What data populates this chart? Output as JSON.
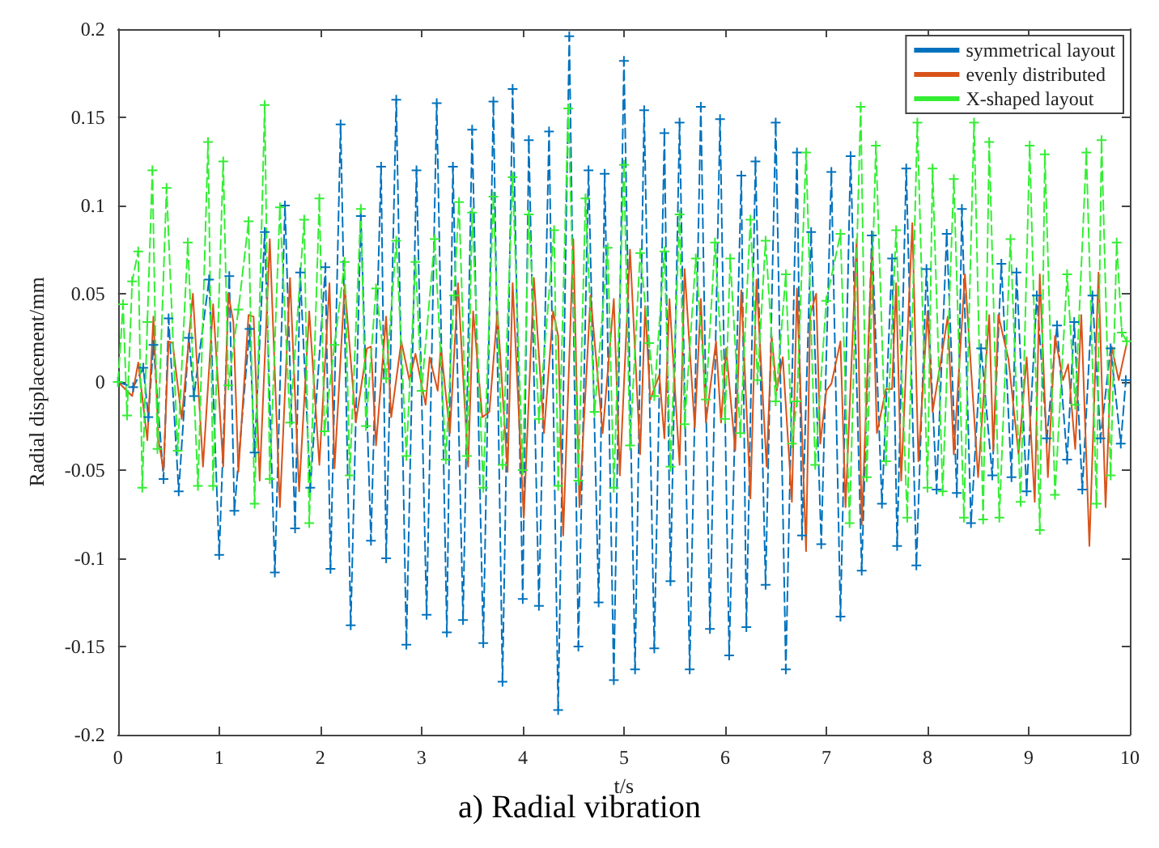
{
  "chart_data": {
    "type": "line",
    "title": "a) Radial vibration",
    "xlabel": "t/s",
    "ylabel": "Radial displacement/mm",
    "xlim": [
      0,
      10
    ],
    "xticks": [
      0,
      1,
      2,
      3,
      4,
      5,
      6,
      7,
      8,
      9,
      10
    ],
    "ylim": [
      -0.2,
      0.2
    ],
    "yticks": [
      -0.2,
      -0.15,
      -0.1,
      -0.05,
      0,
      0.05,
      0.1,
      0.15,
      0.2
    ],
    "grid": false,
    "legend": "top right",
    "series": [
      {
        "name": "symmetrical layout",
        "color": "#0072bd",
        "marker": "cross",
        "line_style": "dashed",
        "x": [
          0,
          0.15,
          0.25,
          0.3,
          0.35,
          0.45,
          0.5,
          0.6,
          0.7,
          0.75,
          0.9,
          1.0,
          1.1,
          1.15,
          1.3,
          1.35,
          1.45,
          1.55,
          1.65,
          1.75,
          1.8,
          1.9,
          2.05,
          2.1,
          2.2,
          2.3,
          2.4,
          2.5,
          2.6,
          2.65,
          2.75,
          2.85,
          2.95,
          3.05,
          3.15,
          3.25,
          3.31,
          3.41,
          3.5,
          3.61,
          3.71,
          3.8,
          3.9,
          4.0,
          4.06,
          4.16,
          4.26,
          4.35,
          4.46,
          4.55,
          4.65,
          4.75,
          4.81,
          4.9,
          5.0,
          5.11,
          5.2,
          5.3,
          5.4,
          5.46,
          5.55,
          5.65,
          5.76,
          5.85,
          5.95,
          6.04,
          6.16,
          6.21,
          6.3,
          6.4,
          6.5,
          6.6,
          6.71,
          6.76,
          6.85,
          6.95,
          7.05,
          7.14,
          7.24,
          7.35,
          7.45,
          7.55,
          7.65,
          7.7,
          7.79,
          7.89,
          7.99,
          8.09,
          8.19,
          8.29,
          8.34,
          8.43,
          8.53,
          8.64,
          8.73,
          8.83,
          8.88,
          8.98,
          9.08,
          9.18,
          9.28,
          9.38,
          9.45,
          9.53,
          9.63,
          9.71,
          9.81,
          9.91,
          9.96
        ],
        "values": [
          0,
          -0.003,
          0.008,
          -0.02,
          0.021,
          -0.055,
          0.036,
          -0.062,
          0.025,
          -0.008,
          0.058,
          -0.098,
          0.06,
          -0.073,
          0.03,
          -0.04,
          0.085,
          -0.108,
          0.1,
          -0.083,
          0.062,
          -0.06,
          0.065,
          -0.106,
          0.146,
          -0.138,
          0.094,
          -0.09,
          0.122,
          -0.1,
          0.16,
          -0.149,
          0.12,
          -0.132,
          0.158,
          -0.142,
          0.122,
          -0.135,
          0.143,
          -0.148,
          0.159,
          -0.17,
          0.166,
          -0.123,
          0.137,
          -0.127,
          0.142,
          -0.186,
          0.196,
          -0.15,
          0.12,
          -0.125,
          0.118,
          -0.169,
          0.182,
          -0.163,
          0.154,
          -0.151,
          0.141,
          -0.113,
          0.147,
          -0.163,
          0.156,
          -0.14,
          0.149,
          -0.155,
          0.117,
          -0.139,
          0.125,
          -0.115,
          0.147,
          -0.163,
          0.13,
          -0.087,
          0.085,
          -0.092,
          0.119,
          -0.133,
          0.128,
          -0.107,
          0.083,
          -0.069,
          0.07,
          -0.093,
          0.121,
          -0.104,
          0.064,
          -0.061,
          0.084,
          -0.063,
          0.098,
          -0.08,
          0.019,
          -0.053,
          0.067,
          -0.054,
          0.062,
          -0.062,
          0.049,
          -0.032,
          0.032,
          -0.044,
          0.034,
          -0.061,
          0.049,
          -0.032,
          0.019,
          -0.035,
          0.001
        ]
      },
      {
        "name": "evenly distributed",
        "color": "#d95319",
        "marker": "none",
        "line_style": "solid",
        "x": [
          0,
          0.14,
          0.2,
          0.29,
          0.35,
          0.4,
          0.45,
          0.5,
          0.54,
          0.63,
          0.74,
          0.84,
          0.94,
          1.04,
          1.09,
          1.14,
          1.19,
          1.29,
          1.34,
          1.4,
          1.5,
          1.6,
          1.7,
          1.79,
          1.89,
          1.99,
          2.09,
          2.14,
          2.24,
          2.35,
          2.46,
          2.5,
          2.55,
          2.65,
          2.7,
          2.8,
          2.88,
          2.94,
          3.04,
          3.08,
          3.16,
          3.19,
          3.28,
          3.36,
          3.46,
          3.51,
          3.6,
          3.67,
          3.75,
          3.85,
          3.9,
          4.01,
          4.11,
          4.21,
          4.3,
          4.35,
          4.4,
          4.5,
          4.56,
          4.67,
          4.79,
          4.9,
          4.96,
          5.06,
          5.16,
          5.21,
          5.26,
          5.35,
          5.4,
          5.45,
          5.55,
          5.6,
          5.7,
          5.76,
          5.81,
          5.91,
          5.96,
          6.01,
          6.1,
          6.16,
          6.25,
          6.31,
          6.41,
          6.46,
          6.51,
          6.57,
          6.66,
          6.71,
          6.8,
          6.84,
          6.9,
          6.94,
          7.0,
          7.05,
          7.14,
          7.19,
          7.3,
          7.35,
          7.45,
          7.5,
          7.59,
          7.65,
          7.69,
          7.74,
          7.85,
          7.91,
          8.0,
          8.05,
          8.11,
          8.2,
          8.26,
          8.37,
          8.5,
          8.61,
          8.65,
          8.7,
          8.8,
          8.9,
          8.98,
          9.06,
          9.11,
          9.19,
          9.26,
          9.34,
          9.39,
          9.46,
          9.52,
          9.6,
          9.69,
          9.76,
          9.82,
          9.89,
          9.97
        ],
        "values": [
          0,
          -0.008,
          0.011,
          -0.033,
          0.037,
          -0.033,
          -0.05,
          0.023,
          0.022,
          -0.021,
          0.05,
          -0.048,
          0.044,
          -0.048,
          0.05,
          0.034,
          -0.051,
          0.038,
          0.037,
          -0.056,
          0.081,
          -0.071,
          0.059,
          -0.062,
          0.04,
          -0.047,
          0.056,
          -0.049,
          0.055,
          -0.023,
          0.019,
          0.02,
          -0.036,
          0.037,
          -0.02,
          0.023,
          0.001,
          0.016,
          -0.013,
          0.014,
          -0.005,
          0.02,
          -0.029,
          0.056,
          -0.048,
          0.04,
          -0.02,
          -0.017,
          0.04,
          -0.051,
          0.056,
          -0.077,
          0.059,
          -0.029,
          0.04,
          0.026,
          -0.087,
          0.081,
          -0.071,
          0.049,
          -0.029,
          0.047,
          -0.053,
          0.075,
          -0.041,
          0.043,
          -0.01,
          0.004,
          -0.032,
          0.047,
          -0.047,
          0.064,
          -0.026,
          0.047,
          -0.023,
          0.023,
          -0.023,
          0.019,
          -0.039,
          0.052,
          -0.066,
          0.058,
          -0.048,
          0.026,
          -0.005,
          0.014,
          -0.068,
          0.053,
          -0.096,
          0.038,
          0.05,
          -0.035,
          -0.005,
          -0.001,
          0.023,
          -0.071,
          0.081,
          -0.081,
          0.074,
          -0.029,
          -0.004,
          -0.004,
          0.056,
          -0.056,
          0.09,
          -0.045,
          0.04,
          -0.017,
          0.004,
          0.037,
          -0.041,
          0.061,
          -0.054,
          0.038,
          -0.039,
          0.038,
          0.013,
          -0.041,
          0.014,
          -0.068,
          0.061,
          -0.054,
          0.026,
          0.001,
          0.01,
          -0.038,
          0.038,
          -0.093,
          0.062,
          -0.071,
          0.02,
          0.001,
          0.022
        ]
      },
      {
        "name": "X-shaped layout",
        "color": "#33ee33",
        "marker": "cross",
        "line_style": "dashed",
        "x": [
          0,
          0.05,
          0.09,
          0.14,
          0.2,
          0.24,
          0.29,
          0.34,
          0.39,
          0.48,
          0.59,
          0.69,
          0.79,
          0.89,
          0.94,
          1.04,
          1.09,
          1.19,
          1.29,
          1.35,
          1.45,
          1.5,
          1.6,
          1.7,
          1.84,
          1.89,
          1.99,
          2.04,
          2.14,
          2.24,
          2.29,
          2.4,
          2.45,
          2.55,
          2.65,
          2.75,
          2.85,
          2.94,
          3.0,
          3.13,
          3.24,
          3.32,
          3.37,
          3.45,
          3.5,
          3.61,
          3.71,
          3.8,
          3.9,
          4.0,
          4.06,
          4.16,
          4.31,
          4.35,
          4.45,
          4.55,
          4.62,
          4.71,
          4.84,
          4.9,
          5.0,
          5.06,
          5.16,
          5.25,
          5.3,
          5.4,
          5.46,
          5.55,
          5.6,
          5.71,
          5.81,
          5.9,
          6.0,
          6.05,
          6.15,
          6.25,
          6.32,
          6.4,
          6.5,
          6.6,
          6.66,
          6.71,
          6.8,
          6.89,
          7.0,
          7.14,
          7.23,
          7.34,
          7.4,
          7.49,
          7.59,
          7.69,
          7.8,
          7.9,
          8.0,
          8.05,
          8.15,
          8.26,
          8.36,
          8.46,
          8.55,
          8.61,
          8.71,
          8.82,
          8.92,
          9.01,
          9.11,
          9.16,
          9.26,
          9.38,
          9.46,
          9.57,
          9.67,
          9.72,
          9.81,
          9.87,
          9.92,
          9.97
        ],
        "values": [
          0,
          0.044,
          -0.019,
          0.057,
          0.074,
          -0.06,
          0.034,
          0.12,
          -0.038,
          0.11,
          -0.039,
          0.079,
          -0.059,
          0.136,
          -0.059,
          0.125,
          -0.002,
          0.041,
          0.091,
          -0.069,
          0.157,
          -0.055,
          0.099,
          -0.023,
          0.092,
          -0.08,
          0.104,
          -0.028,
          0.021,
          0.068,
          -0.053,
          0.098,
          -0.025,
          0.053,
          0.002,
          0.08,
          -0.042,
          0.068,
          -0.005,
          0.081,
          -0.044,
          0.049,
          0.102,
          -0.042,
          0.096,
          -0.06,
          0.105,
          -0.047,
          0.116,
          -0.05,
          0.095,
          -0.021,
          0.086,
          -0.059,
          0.155,
          -0.056,
          0.104,
          -0.017,
          0.076,
          -0.06,
          0.123,
          -0.036,
          0.073,
          0.022,
          -0.008,
          0.074,
          -0.048,
          0.095,
          -0.024,
          0.07,
          -0.01,
          0.079,
          -0.021,
          0.07,
          -0.029,
          0.092,
          0.001,
          0.08,
          -0.011,
          0.061,
          -0.035,
          -0.011,
          0.13,
          -0.047,
          0.046,
          0.084,
          -0.08,
          0.156,
          -0.054,
          0.134,
          -0.045,
          0.086,
          -0.077,
          0.147,
          -0.06,
          0.121,
          -0.062,
          0.115,
          -0.077,
          0.147,
          -0.078,
          0.136,
          -0.077,
          0.081,
          -0.068,
          0.134,
          -0.084,
          0.129,
          -0.064,
          0.061,
          -0.013,
          0.13,
          -0.069,
          0.137,
          -0.053,
          0.079,
          0.028,
          0.023
        ]
      }
    ]
  }
}
